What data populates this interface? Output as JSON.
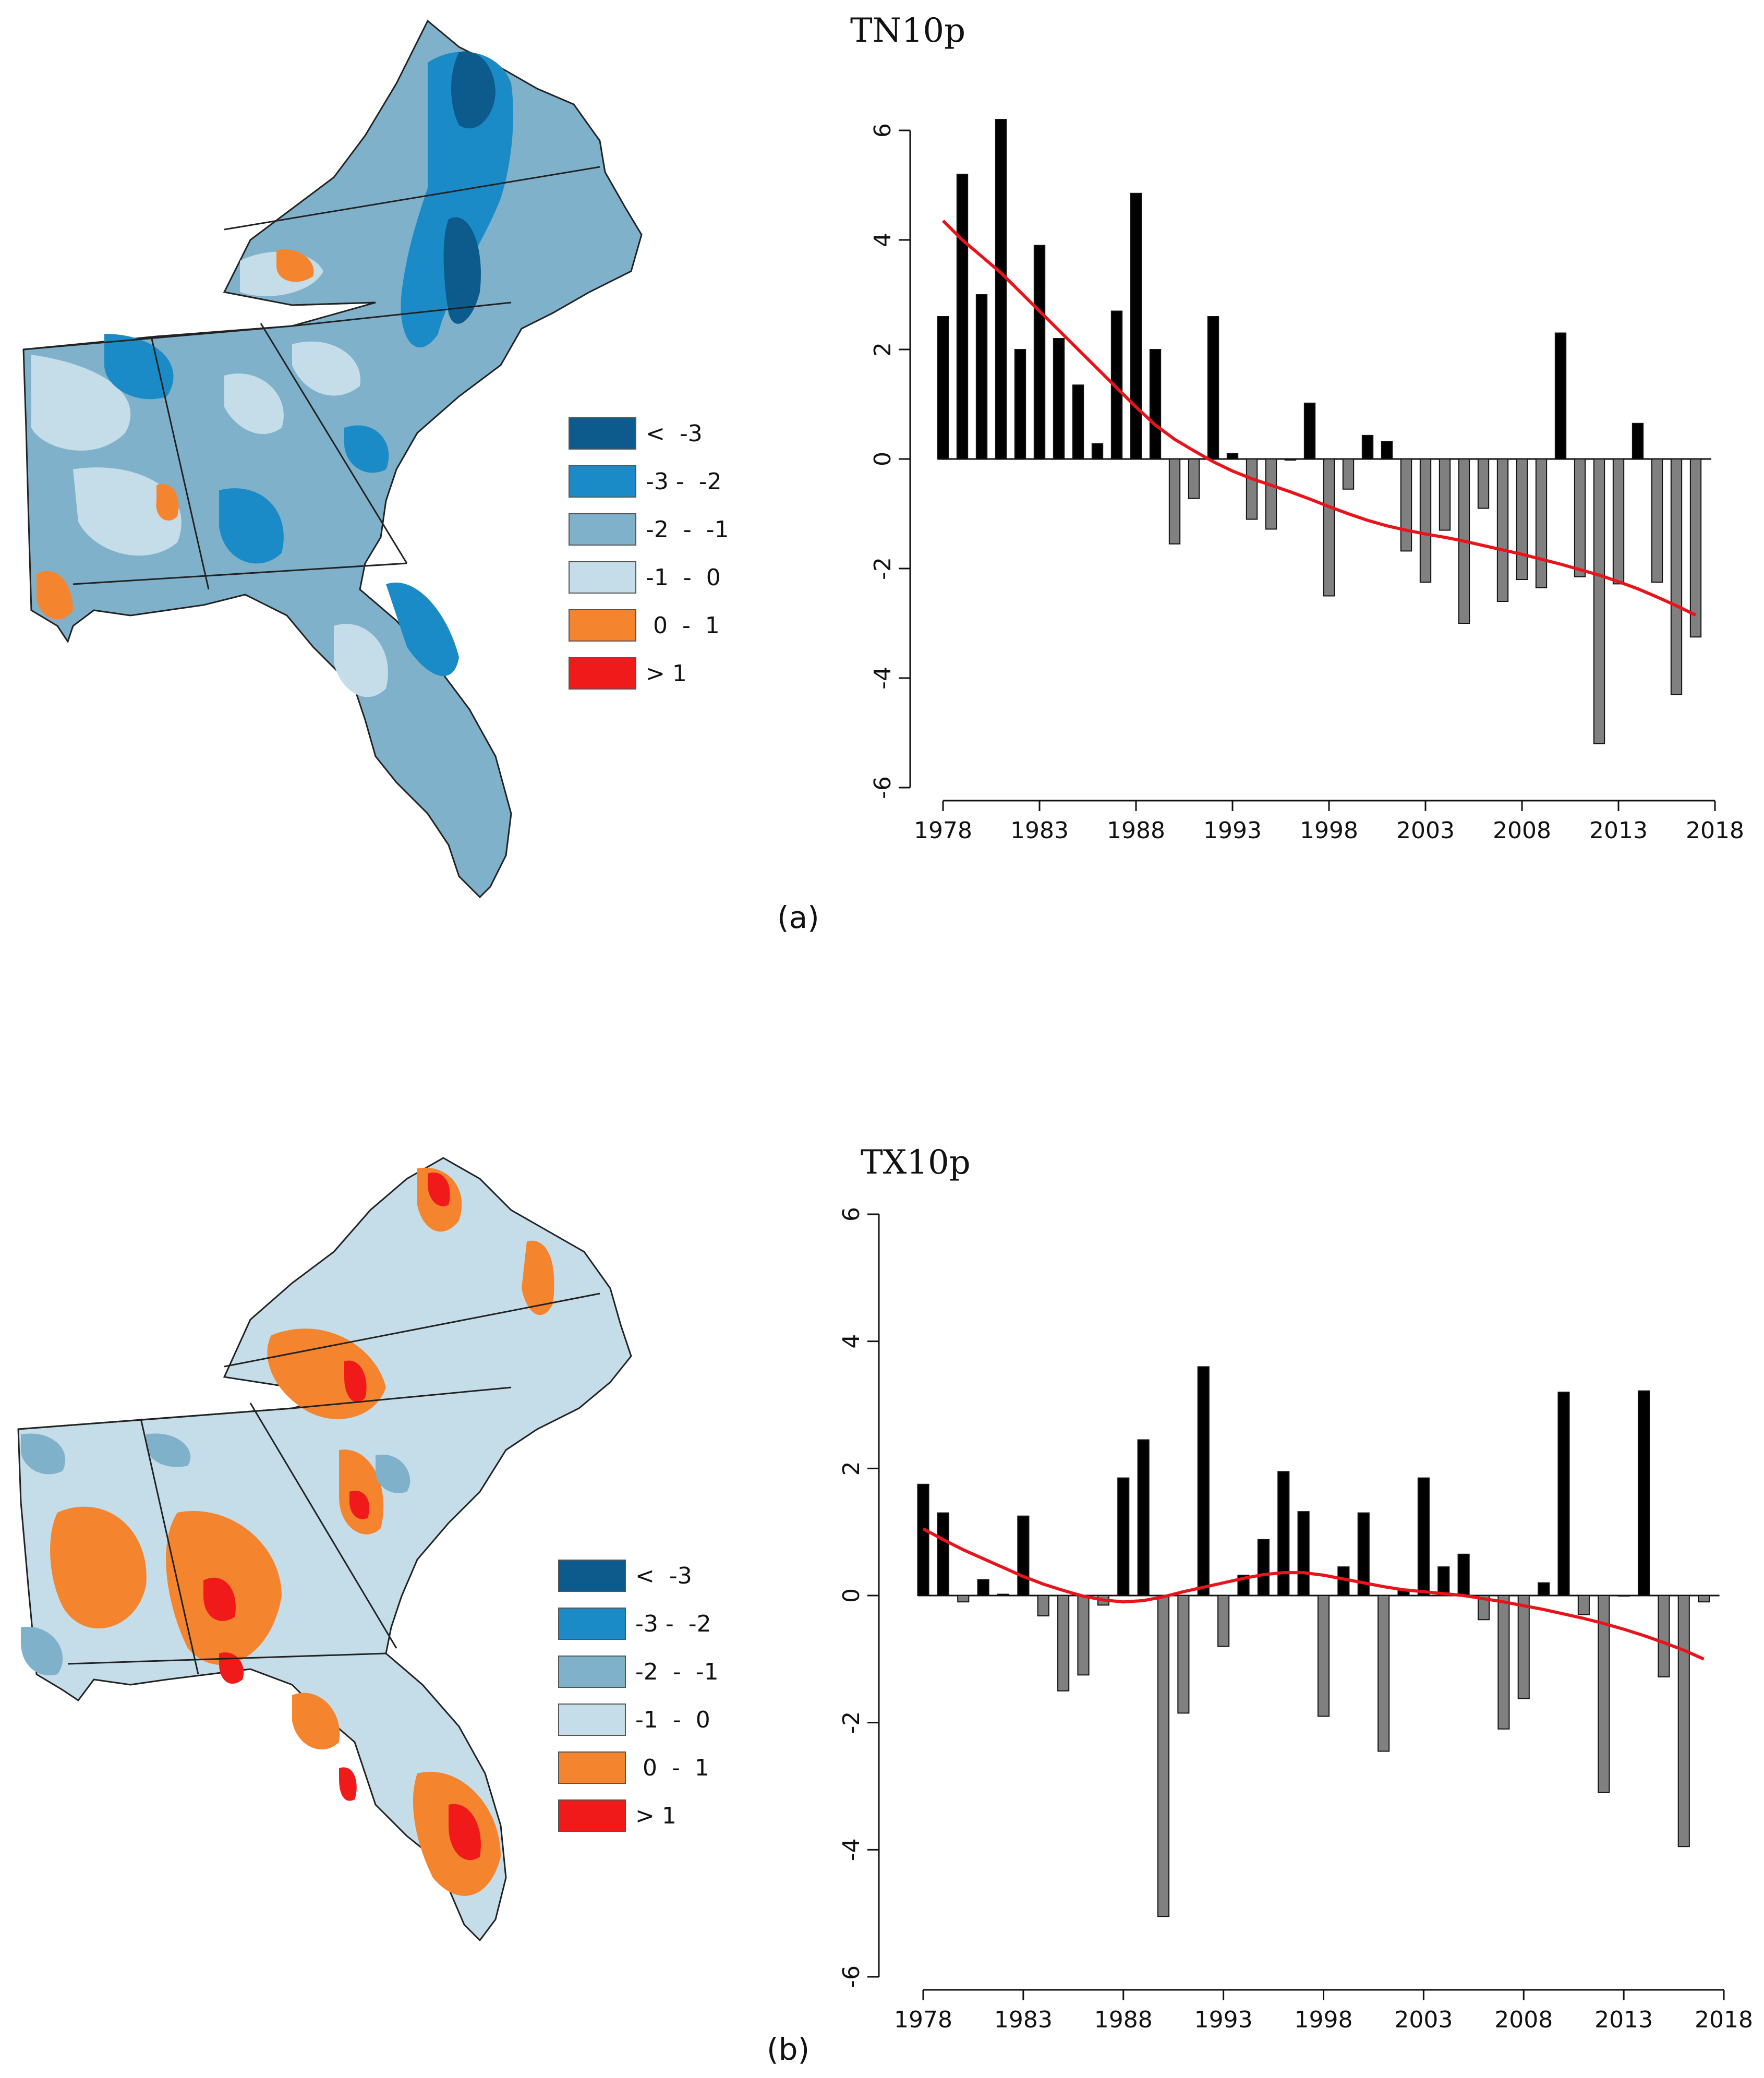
{
  "figure": {
    "panel_labels": [
      "(a)",
      "(b)"
    ]
  },
  "maps": [
    {
      "name": "TN10p trend map",
      "description_shape": "southeastern United States",
      "dominant_color": "#7fb1cb"
    },
    {
      "name": "TX10p trend map",
      "description_shape": "southeastern United States",
      "dominant_color": "#c5dde9"
    }
  ],
  "legend": [
    {
      "label": "<  -3",
      "color": "#0d5b8c"
    },
    {
      "label": "-3 -  -2",
      "color": "#1a8bc6"
    },
    {
      "label": "-2  -  -1",
      "color": "#7fb1cb"
    },
    {
      "label": "-1  -  0",
      "color": "#c5dde9"
    },
    {
      "label": " 0  -  1",
      "color": "#f5842f"
    },
    {
      "label": "> 1",
      "color": "#f11a1a"
    }
  ],
  "chart_data": [
    {
      "type": "bar",
      "title": "TN10p",
      "xlabel": "",
      "ylabel": "",
      "x": [
        1978,
        1979,
        1980,
        1981,
        1982,
        1983,
        1984,
        1985,
        1986,
        1987,
        1988,
        1989,
        1990,
        1991,
        1992,
        1993,
        1994,
        1995,
        1996,
        1997,
        1998,
        1999,
        2000,
        2001,
        2002,
        2003,
        2004,
        2005,
        2006,
        2007,
        2008,
        2009,
        2010,
        2011,
        2012,
        2013,
        2014,
        2015,
        2016,
        2017
      ],
      "values": [
        2.6,
        5.2,
        3.0,
        6.2,
        2.0,
        3.9,
        2.2,
        1.35,
        0.28,
        2.7,
        4.85,
        2.0,
        -1.55,
        -0.72,
        2.6,
        0.1,
        -1.1,
        -1.28,
        -0.02,
        1.02,
        -2.5,
        -0.55,
        0.43,
        0.32,
        -1.68,
        -2.25,
        -1.3,
        -3.0,
        -0.9,
        -2.6,
        -2.2,
        -2.35,
        2.3,
        -2.15,
        -5.2,
        -2.28,
        0.65,
        -2.25,
        -4.3,
        -3.25
      ],
      "trend": [
        4.35,
        4.0,
        3.7,
        3.4,
        3.05,
        2.7,
        2.35,
        2.0,
        1.65,
        1.3,
        0.95,
        0.62,
        0.36,
        0.15,
        -0.05,
        -0.22,
        -0.36,
        -0.48,
        -0.6,
        -0.73,
        -0.87,
        -1.0,
        -1.12,
        -1.22,
        -1.3,
        -1.37,
        -1.43,
        -1.5,
        -1.58,
        -1.66,
        -1.74,
        -1.83,
        -1.92,
        -2.02,
        -2.12,
        -2.24,
        -2.37,
        -2.52,
        -2.68,
        -2.85
      ],
      "xticks": [
        1978,
        1983,
        1988,
        1993,
        1998,
        2003,
        2008,
        2013,
        2018
      ],
      "yticks": [
        -6,
        -4,
        -2,
        0,
        2,
        4,
        6
      ],
      "ylim": [
        -6,
        6
      ],
      "positive_color": "#000000",
      "negative_color": "#808080",
      "trend_color": "#e8141c"
    },
    {
      "type": "bar",
      "title": "TX10p",
      "xlabel": "",
      "ylabel": "",
      "x": [
        1978,
        1979,
        1980,
        1981,
        1982,
        1983,
        1984,
        1985,
        1986,
        1987,
        1988,
        1989,
        1990,
        1991,
        1992,
        1993,
        1994,
        1995,
        1996,
        1997,
        1998,
        1999,
        2000,
        2001,
        2002,
        2003,
        2004,
        2005,
        2006,
        2007,
        2008,
        2009,
        2010,
        2011,
        2012,
        2013,
        2014,
        2015,
        2016,
        2017
      ],
      "values": [
        1.75,
        1.3,
        -0.1,
        0.25,
        0.02,
        1.25,
        -0.32,
        -1.5,
        -1.25,
        -0.15,
        1.85,
        2.45,
        -5.05,
        -1.85,
        3.6,
        -0.8,
        0.32,
        0.88,
        1.95,
        1.32,
        -1.9,
        0.45,
        1.3,
        -2.45,
        0.1,
        1.85,
        0.45,
        0.65,
        -0.38,
        -2.1,
        -1.62,
        0.2,
        3.2,
        -0.3,
        -3.1,
        0.0,
        3.22,
        -1.28,
        -3.95,
        -0.1
      ],
      "trend": [
        1.05,
        0.88,
        0.72,
        0.58,
        0.44,
        0.3,
        0.18,
        0.08,
        -0.01,
        -0.07,
        -0.1,
        -0.08,
        -0.02,
        0.06,
        0.13,
        0.2,
        0.27,
        0.33,
        0.36,
        0.36,
        0.32,
        0.26,
        0.2,
        0.14,
        0.09,
        0.06,
        0.03,
        0.0,
        -0.05,
        -0.1,
        -0.16,
        -0.22,
        -0.29,
        -0.36,
        -0.44,
        -0.53,
        -0.63,
        -0.74,
        -0.86,
        -1.0
      ],
      "xticks": [
        1978,
        1983,
        1988,
        1993,
        1998,
        2003,
        2008,
        2013,
        2018
      ],
      "yticks": [
        -6,
        -4,
        -2,
        0,
        2,
        4,
        6
      ],
      "ylim": [
        -6,
        6
      ],
      "positive_color": "#000000",
      "negative_color": "#808080",
      "trend_color": "#e8141c"
    }
  ]
}
